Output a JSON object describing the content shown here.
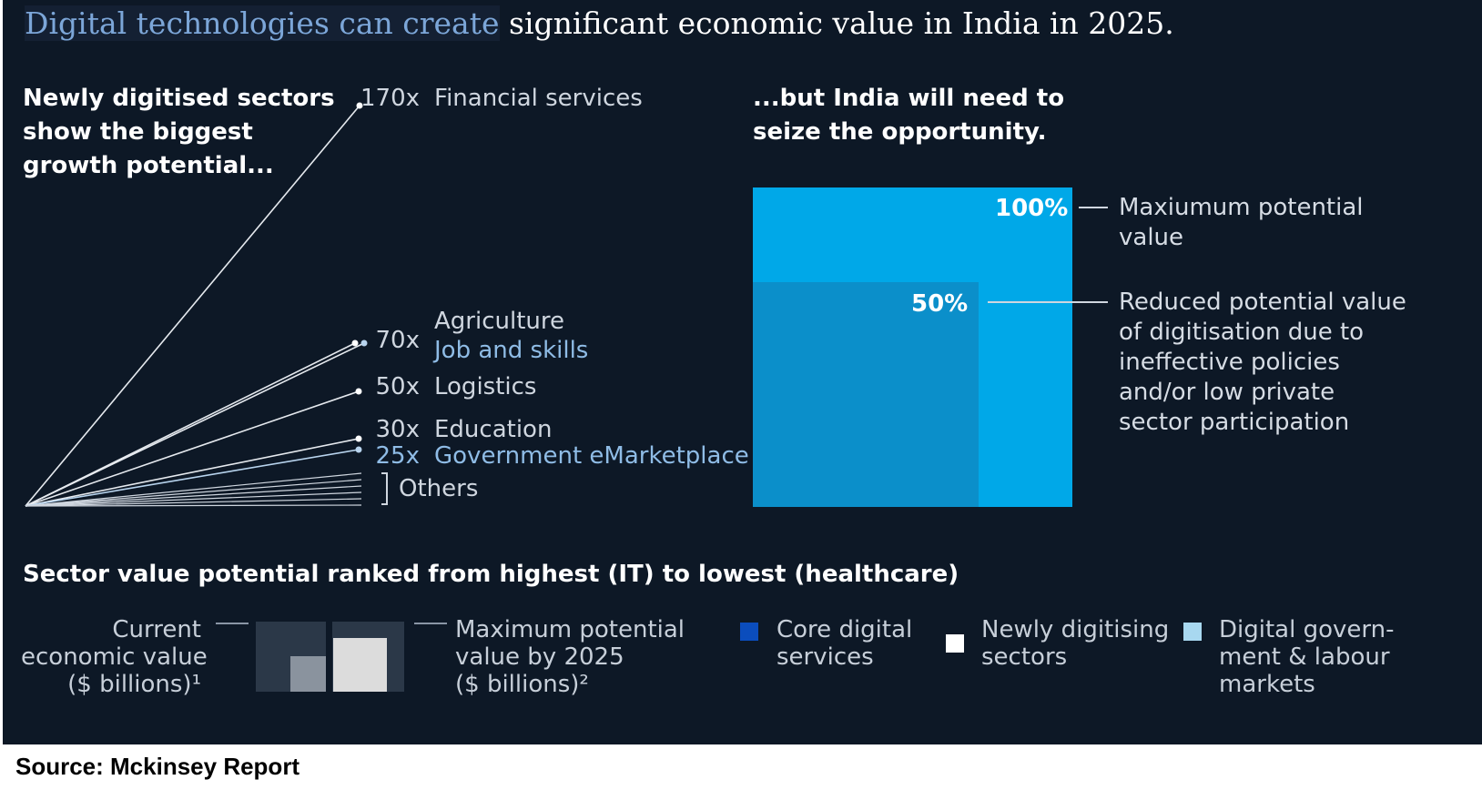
{
  "headline": {
    "part1": "Digital technologies can create",
    "part2": " significant economic value in India in 2025."
  },
  "left_panel": {
    "title_lines": [
      "Newly digitised sectors",
      "show the biggest",
      "growth potential..."
    ]
  },
  "right_panel": {
    "title_lines": [
      "...but India will need to",
      "seize the opportunity."
    ],
    "max_label": "100%",
    "reduced_label": "50%",
    "max_desc_lines": [
      "Maxiumum potential",
      "value"
    ],
    "reduced_desc_lines": [
      "Reduced potential value",
      "of digitisation due to",
      "ineffective policies",
      "and/or low private",
      "sector participation"
    ]
  },
  "ranking_title": "Sector value potential ranked from highest (IT) to lowest (healthcare)",
  "key": {
    "current_lines": [
      "Current",
      "economic value",
      "($ billions)¹"
    ],
    "max_lines": [
      "Maximum potential",
      "value by 2025",
      "($ billions)²"
    ]
  },
  "legend": {
    "core_lines": [
      "Core digital",
      "services"
    ],
    "newly_lines": [
      "Newly digitising",
      "sectors"
    ],
    "gov_lines": [
      "Digital govern-",
      "ment & labour",
      "markets"
    ]
  },
  "colors": {
    "core": "#0b4dbd",
    "newly": "#ffffff",
    "gov": "#a8d8f0",
    "max_value": "#00a8e8",
    "reduced_value": "#0b8fca"
  },
  "chart_data": [
    {
      "type": "line",
      "title": "Newly digitised sectors show the biggest growth potential...",
      "series": [
        {
          "name": "Financial services",
          "multiplier": 170,
          "label": "170x"
        },
        {
          "name": "Agriculture",
          "multiplier": 70,
          "label": "70x"
        },
        {
          "name": "Job and skills",
          "multiplier": 70,
          "label": ""
        },
        {
          "name": "Logistics",
          "multiplier": 50,
          "label": "50x"
        },
        {
          "name": "Education",
          "multiplier": 30,
          "label": "30x"
        },
        {
          "name": "Government eMarketplace",
          "multiplier": 25,
          "label": "25x"
        }
      ],
      "others": {
        "name": "Others",
        "multipliers": [
          12,
          10,
          8,
          6,
          4,
          2
        ]
      }
    },
    {
      "type": "area",
      "title": "...but India will need to seize the opportunity.",
      "values": [
        {
          "name": "Maxiumum potential value",
          "percent": 100
        },
        {
          "name": "Reduced potential value",
          "percent": 50
        }
      ]
    }
  ]
}
